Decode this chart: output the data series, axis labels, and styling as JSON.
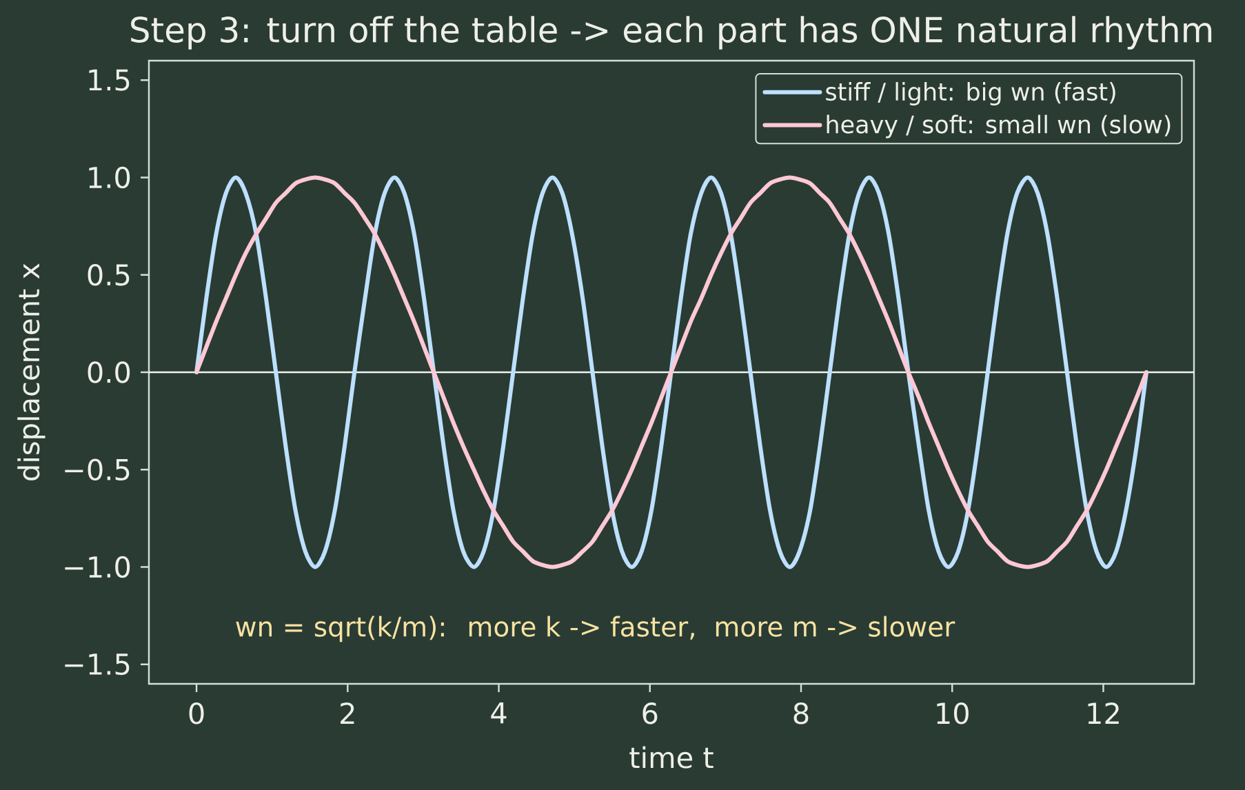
{
  "chart_data": {
    "type": "line",
    "title": "Step 3: turn off the table -> each part has ONE natural rhythm",
    "xlabel": "time t",
    "ylabel": "displacement x",
    "x": [
      0,
      0.13,
      0.26,
      0.39,
      0.52,
      0.65,
      0.79,
      0.92,
      1.05,
      1.18,
      1.31,
      1.44,
      1.57,
      1.7,
      1.83,
      1.96,
      2.09,
      2.23,
      2.36,
      2.49,
      2.62,
      2.75,
      2.88,
      3.01,
      3.14,
      3.27,
      3.4,
      3.53,
      3.67,
      3.8,
      3.93,
      4.06,
      4.19,
      4.32,
      4.45,
      4.58,
      4.71,
      4.84,
      4.97,
      5.11,
      5.24,
      5.37,
      5.5,
      5.63,
      5.76,
      5.89,
      6.02,
      6.15,
      6.28,
      6.41,
      6.54,
      6.68,
      6.81,
      6.94,
      7.07,
      7.2,
      7.33,
      7.46,
      7.59,
      7.72,
      7.85,
      7.98,
      8.12,
      8.25,
      8.38,
      8.51,
      8.64,
      8.77,
      8.9,
      9.03,
      9.16,
      9.29,
      9.42,
      9.56,
      9.69,
      9.82,
      9.95,
      10.08,
      10.21,
      10.34,
      10.47,
      10.6,
      10.73,
      10.86,
      11,
      11.13,
      11.26,
      11.39,
      11.52,
      11.65,
      11.78,
      11.91,
      12.04,
      12.17,
      12.3,
      12.44,
      12.57
    ],
    "series": [
      {
        "name": "stiff / light: big wn (fast)",
        "color": "#bde0fe",
        "values": [
          0,
          0.38,
          0.71,
          0.92,
          1,
          0.92,
          0.71,
          0.38,
          0,
          -0.38,
          -0.71,
          -0.92,
          -1,
          -0.92,
          -0.71,
          -0.38,
          0,
          0.38,
          0.71,
          0.92,
          1,
          0.92,
          0.71,
          0.38,
          0,
          -0.38,
          -0.71,
          -0.92,
          -1,
          -0.92,
          -0.71,
          -0.38,
          0,
          0.38,
          0.71,
          0.92,
          1,
          0.92,
          0.71,
          0.38,
          0,
          -0.38,
          -0.71,
          -0.92,
          -1,
          -0.92,
          -0.71,
          -0.38,
          0,
          0.38,
          0.71,
          0.92,
          1,
          0.92,
          0.71,
          0.38,
          0,
          -0.38,
          -0.71,
          -0.92,
          -1,
          -0.92,
          -0.71,
          -0.38,
          0,
          0.38,
          0.71,
          0.92,
          1,
          0.92,
          0.71,
          0.38,
          0,
          -0.38,
          -0.71,
          -0.92,
          -1,
          -0.92,
          -0.71,
          -0.38,
          0,
          0.38,
          0.71,
          0.92,
          1,
          0.92,
          0.71,
          0.38,
          0,
          -0.38,
          -0.71,
          -0.92,
          -1,
          -0.92,
          -0.71,
          -0.38,
          0
        ]
      },
      {
        "name": "heavy / soft: small wn (slow)",
        "color": "#ffc8d5",
        "values": [
          0,
          0.13,
          0.26,
          0.38,
          0.5,
          0.61,
          0.71,
          0.79,
          0.87,
          0.92,
          0.97,
          0.99,
          1,
          0.99,
          0.97,
          0.92,
          0.87,
          0.79,
          0.71,
          0.61,
          0.5,
          0.38,
          0.26,
          0.13,
          0,
          -0.13,
          -0.26,
          -0.38,
          -0.5,
          -0.61,
          -0.71,
          -0.79,
          -0.87,
          -0.92,
          -0.97,
          -0.99,
          -1,
          -0.99,
          -0.97,
          -0.92,
          -0.87,
          -0.79,
          -0.71,
          -0.61,
          -0.5,
          -0.38,
          -0.26,
          -0.13,
          0,
          0.13,
          0.26,
          0.38,
          0.5,
          0.61,
          0.71,
          0.79,
          0.87,
          0.92,
          0.97,
          0.99,
          1,
          0.99,
          0.97,
          0.92,
          0.87,
          0.79,
          0.71,
          0.61,
          0.5,
          0.38,
          0.26,
          0.13,
          0,
          -0.13,
          -0.26,
          -0.38,
          -0.5,
          -0.61,
          -0.71,
          -0.79,
          -0.87,
          -0.92,
          -0.97,
          -0.99,
          -1,
          -0.99,
          -0.97,
          -0.92,
          -0.87,
          -0.79,
          -0.71,
          -0.61,
          -0.5,
          -0.38,
          -0.26,
          -0.13,
          0
        ]
      }
    ],
    "xlim": [
      -0.63,
      13.2
    ],
    "ylim": [
      -1.6,
      1.6
    ],
    "xticks": [
      0,
      2,
      4,
      6,
      8,
      10,
      12
    ],
    "yticks": [
      {
        "value": -1.5,
        "label": "−1.5"
      },
      {
        "value": -1,
        "label": "−1.0"
      },
      {
        "value": -0.5,
        "label": "−0.5"
      },
      {
        "value": 0,
        "label": "0.0"
      },
      0.5,
      {
        "value": 1,
        "label": "1.0"
      },
      1.5
    ],
    "ref_lines": [
      {
        "axis": "y",
        "value": 0,
        "color": "#f2f2ee"
      }
    ],
    "annotations": [
      "wn = sqrt(k/m):  more k -> faster,  more m -> slower"
    ],
    "legend": "top right"
  }
}
